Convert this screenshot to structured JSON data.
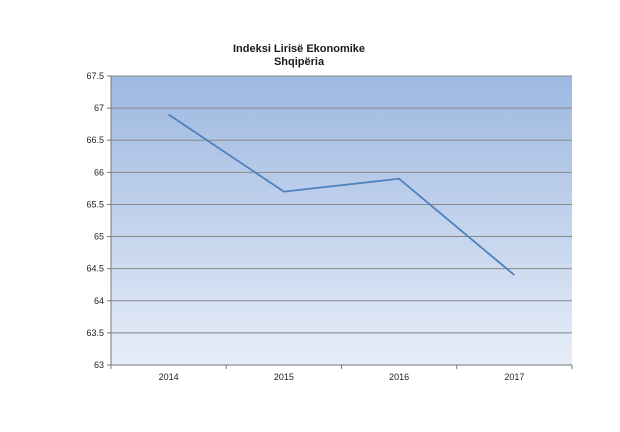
{
  "chart_data": {
    "type": "line",
    "title": "Indeksi Lirisë Ekonomike",
    "subtitle": "Shqipëria",
    "categories": [
      "2014",
      "2015",
      "2016",
      "2017"
    ],
    "series": [
      {
        "values": [
          66.9,
          65.7,
          65.9,
          64.4
        ]
      }
    ],
    "ylim": [
      63,
      67.5
    ],
    "yticks": [
      "63",
      "63.5",
      "64",
      "64.5",
      "65",
      "65.5",
      "66",
      "66.5",
      "67",
      "67.5"
    ],
    "grid": true,
    "legend": "none",
    "colors": {
      "line": "#4f81bd",
      "plot_top": "#9db8e0",
      "plot_bottom": "#e6edf8",
      "grid": "#8a8a8a"
    }
  }
}
